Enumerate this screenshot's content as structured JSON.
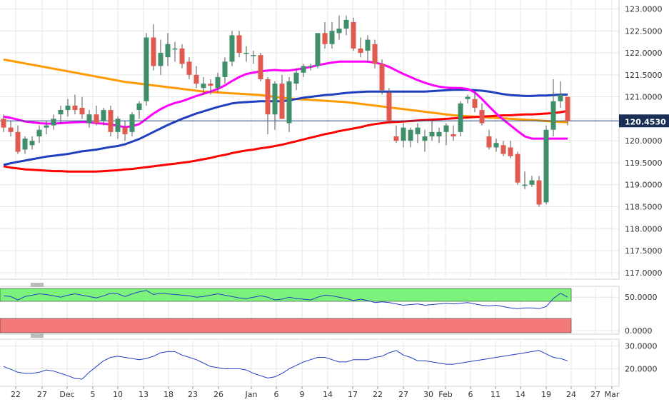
{
  "chart_data": [
    {
      "type": "line",
      "panel": "price",
      "subtype": "candlestick",
      "title": "",
      "xlabel": "",
      "ylabel": "",
      "ylim": [
        116.9,
        123.3
      ],
      "y_ticks": [
        "117.0000",
        "117.5000",
        "118.0000",
        "118.5000",
        "119.0000",
        "119.5000",
        "120.0000",
        "120.5000",
        "121.0000",
        "121.5000",
        "122.0000",
        "122.5000",
        "123.0000"
      ],
      "grid": true,
      "x_tick_labels": [
        "22",
        "27",
        "Dec",
        "5",
        "10",
        "13",
        "18",
        "23",
        "26",
        "Jan",
        "6",
        "9",
        "14",
        "17",
        "22",
        "27",
        "30",
        "Feb",
        "6",
        "11",
        "14",
        "19",
        "24",
        "27",
        "Mar"
      ],
      "current_price": 120.453,
      "current_price_label": "120.4530",
      "candles": [
        [
          120.5,
          120.6,
          120.2,
          120.3
        ],
        [
          120.3,
          120.45,
          120.1,
          120.2
        ],
        [
          120.2,
          120.35,
          119.7,
          119.75
        ],
        [
          119.8,
          120.1,
          119.7,
          120.05
        ],
        [
          119.9,
          120.1,
          119.8,
          120.0
        ],
        [
          120.1,
          120.35,
          119.95,
          120.25
        ],
        [
          120.3,
          120.45,
          120.15,
          120.35
        ],
        [
          120.35,
          120.6,
          120.25,
          120.5
        ],
        [
          120.6,
          120.8,
          120.4,
          120.7
        ],
        [
          120.7,
          120.95,
          120.55,
          120.8
        ],
        [
          120.8,
          121.05,
          120.6,
          120.7
        ],
        [
          120.75,
          121.0,
          120.5,
          120.6
        ],
        [
          120.4,
          120.7,
          120.3,
          120.6
        ],
        [
          120.6,
          120.8,
          120.35,
          120.4
        ],
        [
          120.45,
          120.75,
          120.35,
          120.7
        ],
        [
          120.7,
          120.8,
          120.1,
          120.2
        ],
        [
          120.2,
          120.55,
          120.05,
          120.5
        ],
        [
          120.3,
          120.45,
          120.0,
          120.15
        ],
        [
          120.2,
          120.65,
          120.1,
          120.6
        ],
        [
          120.7,
          120.9,
          120.5,
          120.85
        ],
        [
          120.9,
          122.45,
          120.8,
          122.35
        ],
        [
          122.35,
          122.65,
          121.6,
          121.7
        ],
        [
          121.7,
          122.3,
          121.5,
          122.0
        ],
        [
          121.9,
          122.45,
          121.7,
          122.2
        ],
        [
          122.1,
          122.25,
          121.8,
          122.1
        ],
        [
          122.1,
          122.2,
          121.65,
          121.75
        ],
        [
          121.8,
          121.9,
          121.4,
          121.5
        ],
        [
          121.5,
          121.7,
          121.2,
          121.3
        ],
        [
          121.2,
          121.45,
          121.05,
          121.3
        ],
        [
          121.3,
          121.4,
          121.05,
          121.25
        ],
        [
          121.2,
          121.55,
          121.1,
          121.45
        ],
        [
          121.45,
          121.9,
          121.3,
          121.8
        ],
        [
          121.8,
          122.5,
          121.7,
          122.4
        ],
        [
          122.4,
          122.5,
          121.9,
          122.0
        ],
        [
          122.0,
          122.15,
          121.8,
          122.0
        ],
        [
          121.95,
          122.05,
          121.75,
          121.95
        ],
        [
          121.95,
          122.0,
          121.35,
          121.4
        ],
        [
          121.4,
          121.45,
          120.15,
          120.6
        ],
        [
          120.6,
          121.35,
          120.25,
          121.3
        ],
        [
          121.3,
          121.5,
          120.5,
          120.5
        ],
        [
          120.4,
          121.45,
          120.2,
          121.35
        ],
        [
          121.3,
          121.65,
          121.15,
          121.55
        ],
        [
          121.55,
          121.75,
          121.45,
          121.7
        ],
        [
          121.7,
          121.75,
          121.6,
          121.7
        ],
        [
          121.7,
          122.45,
          121.65,
          122.45
        ],
        [
          122.45,
          122.7,
          122.1,
          122.2
        ],
        [
          122.2,
          122.7,
          122.1,
          122.5
        ],
        [
          122.45,
          122.85,
          122.3,
          122.55
        ],
        [
          122.55,
          122.85,
          122.4,
          122.75
        ],
        [
          122.7,
          122.8,
          122.05,
          122.1
        ],
        [
          122.1,
          122.35,
          121.9,
          122.0
        ],
        [
          122.05,
          122.4,
          121.8,
          122.3
        ],
        [
          122.2,
          122.3,
          121.65,
          121.75
        ],
        [
          121.75,
          121.85,
          121.05,
          121.15
        ],
        [
          121.1,
          121.2,
          120.4,
          120.45
        ],
        [
          120.1,
          120.35,
          119.95,
          120.0
        ],
        [
          120.0,
          120.4,
          119.85,
          120.3
        ],
        [
          120.0,
          120.3,
          119.85,
          120.25
        ],
        [
          120.15,
          120.4,
          119.95,
          120.3
        ],
        [
          120.0,
          120.25,
          119.75,
          120.1
        ],
        [
          120.1,
          120.45,
          120.0,
          120.2
        ],
        [
          120.1,
          120.3,
          119.95,
          120.2
        ],
        [
          120.2,
          120.4,
          119.9,
          120.35
        ],
        [
          120.15,
          120.35,
          120.0,
          120.1
        ],
        [
          120.2,
          120.9,
          120.1,
          120.85
        ],
        [
          120.95,
          121.05,
          120.85,
          121.0
        ],
        [
          120.95,
          121.1,
          120.65,
          120.75
        ],
        [
          120.7,
          120.85,
          120.35,
          120.4
        ],
        [
          120.1,
          120.25,
          119.8,
          119.85
        ],
        [
          119.85,
          120.05,
          119.75,
          119.95
        ],
        [
          119.9,
          120.0,
          119.65,
          119.7
        ],
        [
          119.85,
          120.0,
          119.6,
          119.65
        ],
        [
          119.7,
          119.75,
          119.0,
          119.05
        ],
        [
          119.0,
          119.3,
          118.9,
          119.0
        ],
        [
          119.0,
          119.2,
          118.95,
          119.1
        ],
        [
          119.1,
          119.2,
          118.5,
          118.55
        ],
        [
          118.6,
          120.35,
          118.55,
          120.25
        ],
        [
          120.25,
          121.4,
          120.1,
          120.9
        ],
        [
          120.9,
          121.35,
          120.75,
          121.05
        ],
        [
          121.0,
          121.0,
          120.35,
          120.45
        ]
      ],
      "series": [
        {
          "name": "",
          "color": "#ff00ff",
          "values": [
            120.55,
            120.52,
            120.48,
            120.44,
            120.42,
            120.4,
            120.39,
            120.39,
            120.4,
            120.41,
            120.42,
            120.43,
            120.42,
            120.4,
            120.39,
            120.37,
            120.34,
            120.31,
            120.33,
            120.38,
            120.5,
            120.62,
            120.72,
            120.8,
            120.86,
            120.9,
            120.96,
            121.02,
            121.07,
            121.12,
            121.18,
            121.26,
            121.36,
            121.45,
            121.52,
            121.55,
            121.58,
            121.6,
            121.61,
            121.6,
            121.6,
            121.62,
            121.65,
            121.68,
            121.72,
            121.75,
            121.78,
            121.8,
            121.8,
            121.8,
            121.8,
            121.8,
            121.78,
            121.74,
            121.68,
            121.6,
            121.52,
            121.45,
            121.38,
            121.32,
            121.27,
            121.23,
            121.21,
            121.2,
            121.2,
            121.18,
            121.1,
            120.95,
            120.78,
            120.62,
            120.48,
            120.35,
            120.22,
            120.1,
            120.05,
            120.05,
            120.05,
            120.05,
            120.05,
            120.05
          ]
        },
        {
          "name": "",
          "color": "#1f3fbf",
          "values": [
            119.45,
            119.49,
            119.52,
            119.55,
            119.58,
            119.61,
            119.64,
            119.66,
            119.68,
            119.7,
            119.73,
            119.76,
            119.78,
            119.8,
            119.83,
            119.86,
            119.88,
            119.92,
            119.98,
            120.04,
            120.12,
            120.2,
            120.28,
            120.36,
            120.43,
            120.5,
            120.56,
            120.62,
            120.67,
            120.72,
            120.77,
            120.81,
            120.85,
            120.87,
            120.88,
            120.89,
            120.9,
            120.9,
            120.9,
            120.9,
            120.92,
            120.95,
            120.98,
            121.0,
            121.02,
            121.04,
            121.05,
            121.07,
            121.09,
            121.1,
            121.11,
            121.12,
            121.12,
            121.12,
            121.12,
            121.12,
            121.12,
            121.12,
            121.12,
            121.12,
            121.13,
            121.14,
            121.15,
            121.16,
            121.16,
            121.16,
            121.15,
            121.14,
            121.12,
            121.09,
            121.06,
            121.04,
            121.03,
            121.02,
            121.02,
            121.03,
            121.03,
            121.04,
            121.05,
            121.05
          ]
        },
        {
          "name": "",
          "color": "#ff0000",
          "values": [
            119.42,
            119.39,
            119.37,
            119.35,
            119.34,
            119.33,
            119.32,
            119.31,
            119.31,
            119.3,
            119.3,
            119.3,
            119.3,
            119.3,
            119.31,
            119.32,
            119.33,
            119.35,
            119.36,
            119.38,
            119.4,
            119.42,
            119.44,
            119.46,
            119.48,
            119.5,
            119.52,
            119.55,
            119.58,
            119.61,
            119.65,
            119.68,
            119.72,
            119.75,
            119.78,
            119.8,
            119.83,
            119.85,
            119.88,
            119.91,
            119.95,
            119.99,
            120.03,
            120.07,
            120.11,
            120.15,
            120.18,
            120.22,
            120.25,
            120.28,
            120.31,
            120.35,
            120.38,
            120.4,
            120.42,
            120.43,
            120.44,
            120.45,
            120.46,
            120.47,
            120.48,
            120.49,
            120.5,
            120.51,
            120.52,
            120.53,
            120.54,
            120.55,
            120.56,
            120.57,
            120.58,
            120.58,
            120.59,
            120.6,
            120.6,
            120.61,
            120.62,
            120.63,
            120.65,
            120.68
          ]
        },
        {
          "name": "",
          "color": "#ff9900",
          "values": [
            121.85,
            121.82,
            121.79,
            121.76,
            121.73,
            121.7,
            121.67,
            121.64,
            121.61,
            121.58,
            121.55,
            121.52,
            121.49,
            121.46,
            121.43,
            121.4,
            121.37,
            121.34,
            121.32,
            121.3,
            121.28,
            121.26,
            121.24,
            121.22,
            121.2,
            121.18,
            121.16,
            121.14,
            121.12,
            121.11,
            121.1,
            121.09,
            121.08,
            121.07,
            121.06,
            121.05,
            121.04,
            121.02,
            121.0,
            120.98,
            120.96,
            120.95,
            120.94,
            120.93,
            120.92,
            120.91,
            120.9,
            120.89,
            120.88,
            120.86,
            120.84,
            120.82,
            120.8,
            120.78,
            120.76,
            120.74,
            120.72,
            120.7,
            120.68,
            120.66,
            120.64,
            120.62,
            120.6,
            120.58,
            120.57,
            120.56,
            120.55,
            120.54,
            120.53,
            120.52,
            120.51,
            120.5,
            120.49,
            120.48,
            120.47,
            120.46,
            120.45,
            120.44,
            120.43,
            120.42
          ]
        }
      ]
    },
    {
      "type": "line",
      "panel": "oscillator-1",
      "y_ticks": [
        "0.0000",
        "50.0000"
      ],
      "ylim": [
        -3,
        63
      ],
      "overbought_color": "#7cf27c",
      "oversold_color": "#f47a7a",
      "series": [
        {
          "name": "",
          "color": "#1f3fbf",
          "values": [
            52,
            51,
            46,
            51,
            53,
            55,
            54,
            52,
            50,
            53,
            55,
            53,
            51,
            49,
            52,
            56,
            55,
            51,
            55,
            58,
            60,
            54,
            56,
            55,
            54,
            53,
            52,
            50,
            51,
            53,
            55,
            53,
            51,
            49,
            48,
            50,
            52,
            50,
            46,
            47,
            50,
            48,
            47,
            46,
            50,
            53,
            52,
            50,
            48,
            45,
            47,
            45,
            42,
            43,
            42,
            40,
            38,
            39,
            40,
            38,
            39,
            40,
            41,
            40,
            41,
            42,
            40,
            38,
            37,
            38,
            36,
            34,
            33,
            34,
            34,
            33,
            36,
            48,
            56,
            50
          ]
        }
      ]
    },
    {
      "type": "line",
      "panel": "oscillator-2",
      "y_ticks": [
        "20.0000",
        "30.0000"
      ],
      "ylim": [
        13,
        32
      ],
      "series": [
        {
          "name": "",
          "color": "#1f3fbf",
          "values": [
            21.0,
            19.8,
            18.5,
            18.0,
            18.0,
            18.5,
            19.5,
            19.0,
            18.0,
            17.0,
            15.8,
            15.5,
            18.5,
            21.0,
            23.5,
            25.0,
            25.5,
            25.0,
            24.5,
            24.0,
            24.5,
            25.5,
            27.0,
            27.5,
            27.5,
            26.0,
            25.0,
            24.0,
            22.5,
            21.0,
            20.5,
            20.0,
            20.0,
            20.0,
            19.5,
            18.0,
            17.0,
            16.0,
            16.5,
            18.0,
            20.0,
            21.5,
            23.0,
            24.0,
            25.0,
            25.0,
            24.0,
            23.0,
            23.0,
            24.0,
            24.0,
            24.0,
            25.0,
            25.5,
            27.0,
            28.0,
            26.0,
            25.0,
            23.5,
            23.5,
            23.0,
            22.5,
            22.0,
            22.0,
            22.5,
            23.0,
            23.5,
            24.0,
            24.5,
            25.0,
            25.5,
            26.0,
            26.5,
            27.0,
            27.5,
            28.0,
            26.5,
            25.0,
            24.5,
            23.5
          ]
        }
      ]
    }
  ]
}
